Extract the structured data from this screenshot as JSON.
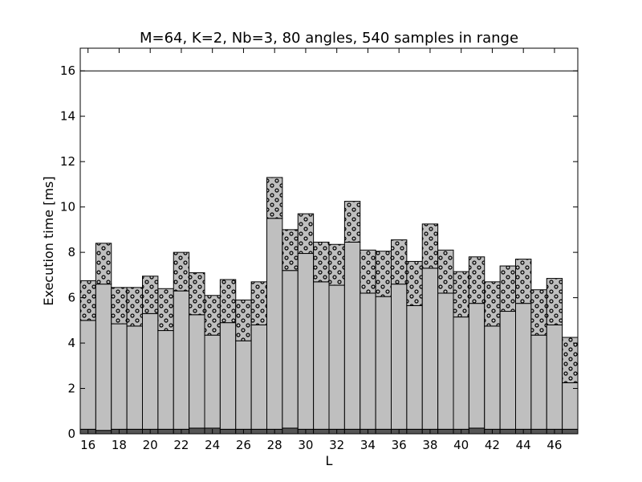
{
  "chart_data": {
    "type": "bar",
    "title": "M=64, K=2, Nb=3, 80 angles, 540 samples in range",
    "xlabel": "L",
    "ylabel": "Execution time [ms]",
    "xlim": [
      15.5,
      47.5
    ],
    "ylim": [
      0,
      17
    ],
    "xticks": [
      16,
      18,
      20,
      22,
      24,
      26,
      28,
      30,
      32,
      34,
      36,
      38,
      40,
      42,
      44,
      46
    ],
    "yticks": [
      0,
      2,
      4,
      6,
      8,
      10,
      12,
      14,
      16
    ],
    "reference_line": {
      "y": 16,
      "color": "#000000"
    },
    "stacked": true,
    "x": [
      16,
      17,
      18,
      19,
      20,
      21,
      22,
      23,
      24,
      25,
      26,
      27,
      28,
      29,
      30,
      31,
      32,
      33,
      34,
      35,
      36,
      37,
      38,
      39,
      40,
      41,
      42,
      43,
      44,
      45,
      46,
      47
    ],
    "series": [
      {
        "pattern": "solid-dark",
        "color": "#555555",
        "values": [
          0.2,
          0.15,
          0.2,
          0.2,
          0.2,
          0.2,
          0.2,
          0.25,
          0.25,
          0.2,
          0.2,
          0.2,
          0.2,
          0.25,
          0.2,
          0.2,
          0.2,
          0.2,
          0.2,
          0.2,
          0.2,
          0.2,
          0.2,
          0.2,
          0.2,
          0.25,
          0.2,
          0.2,
          0.2,
          0.2,
          0.2,
          0.2
        ]
      },
      {
        "pattern": "solid",
        "color": "#bfbfbf",
        "values": [
          4.8,
          6.45,
          4.65,
          4.55,
          5.1,
          4.35,
          6.1,
          5.0,
          4.1,
          4.7,
          3.9,
          4.6,
          9.3,
          6.95,
          7.75,
          6.5,
          6.35,
          8.25,
          6.0,
          5.85,
          6.4,
          5.45,
          7.1,
          6.0,
          4.95,
          5.5,
          4.55,
          5.2,
          5.55,
          4.15,
          4.6,
          2.05
        ]
      },
      {
        "pattern": "dots",
        "color": "#bfbfbf",
        "values": [
          1.75,
          1.8,
          1.6,
          1.7,
          1.65,
          1.85,
          1.7,
          1.85,
          1.75,
          1.9,
          1.8,
          1.9,
          1.8,
          1.8,
          1.75,
          1.75,
          1.8,
          1.8,
          1.9,
          2.0,
          1.95,
          1.95,
          1.95,
          1.9,
          2.0,
          2.05,
          1.95,
          2.0,
          1.95,
          2.0,
          2.05,
          2.0
        ]
      }
    ]
  }
}
